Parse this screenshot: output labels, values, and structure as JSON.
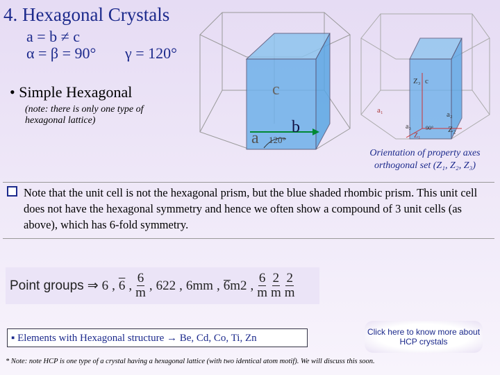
{
  "header": {
    "title": "4. Hexagonal Crystals",
    "lattice_lengths": "a = b ≠ c",
    "angles_ab": "α = β = 90°",
    "angle_g": "γ = 120°"
  },
  "bullet": "Simple Hexagonal",
  "bullet_note": "(note: there is only one type of hexagonal lattice)",
  "left_figure": {
    "label_c": "c",
    "label_b": "b",
    "label_a": "a",
    "angle": "120°"
  },
  "right_figure": {
    "z3": "Z₃",
    "c": "c",
    "a1": "a₁",
    "a2": "a₂",
    "a3": "a₃",
    "z1": "Z₁",
    "z2": "Z₂",
    "angle": "90°"
  },
  "caption": "Orientation of property axes orthogonal set (Z₁, Z₂, Z₃)",
  "note": "Note that the unit cell is not the hexagonal prism, but the blue shaded rhombic prism. This unit cell does not have the hexagonal symmetry and hence we often show a compound of 3 unit cells (as above), which has 6-fold symmetry.",
  "point_groups": {
    "label": "Point groups",
    "arrow": "⇒",
    "separator": ",",
    "items": [
      "6",
      "6",
      {
        "num": "6",
        "den": "m"
      },
      "622",
      "6mm",
      "6m2",
      [
        {
          "num": "6",
          "den": "m"
        },
        {
          "num": "2",
          "den": "m"
        },
        {
          "num": "2",
          "den": "m"
        }
      ]
    ]
  },
  "elements": "▪ Elements with Hexagonal structure → Be, Cd, Co, Ti, Zn",
  "link": "Click here to know more about HCP crystals",
  "footnote": "* Note: note HCP is one type of a crystal having a hexagonal lattice (with two identical atom motif). We will discuss this soon."
}
